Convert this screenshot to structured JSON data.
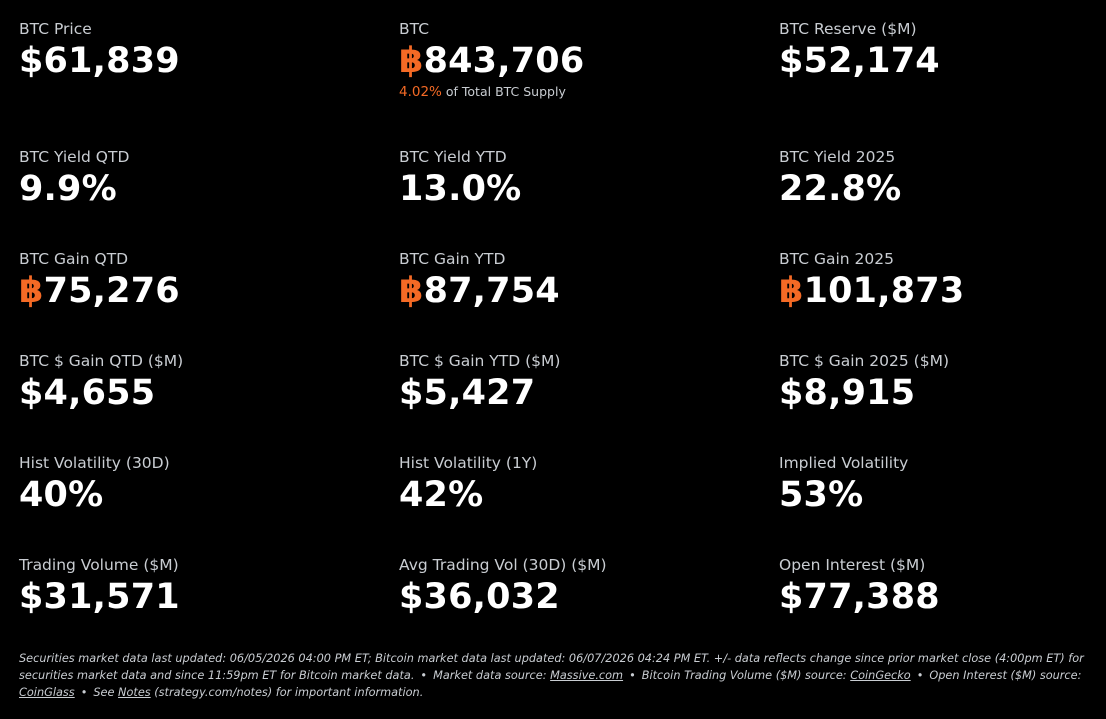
{
  "colors": {
    "background": "#000000",
    "text": "#ffffff",
    "label": "#c9cdd2",
    "btc_accent": "#f46a25"
  },
  "btc_symbol": "฿",
  "metrics": [
    {
      "label": "BTC Price",
      "value": "$61,839"
    },
    {
      "label": "BTC",
      "value": "843,706",
      "sub_pct": "4.02%",
      "sub_text": "of Total BTC Supply"
    },
    {
      "label": "BTC Reserve ($M)",
      "value": "$52,174"
    },
    {
      "label": "BTC Yield QTD",
      "value": "9.9%"
    },
    {
      "label": "BTC Yield YTD",
      "value": "13.0%"
    },
    {
      "label": "BTC Yield 2025",
      "value": "22.8%"
    },
    {
      "label": "BTC Gain QTD",
      "value": "75,276"
    },
    {
      "label": "BTC Gain YTD",
      "value": "87,754"
    },
    {
      "label": "BTC Gain 2025",
      "value": "101,873"
    },
    {
      "label": "BTC $ Gain QTD ($M)",
      "value": "$4,655"
    },
    {
      "label": "BTC $ Gain YTD ($M)",
      "value": "$5,427"
    },
    {
      "label": "BTC $ Gain 2025 ($M)",
      "value": "$8,915"
    },
    {
      "label": "Hist Volatility (30D)",
      "value": "40%"
    },
    {
      "label": "Hist Volatility (1Y)",
      "value": "42%"
    },
    {
      "label": "Implied Volatility",
      "value": "53%"
    },
    {
      "label": "Trading Volume ($M)",
      "value": "$31,571"
    },
    {
      "label": "Avg Trading Vol (30D) ($M)",
      "value": "$36,032"
    },
    {
      "label": "Open Interest ($M)",
      "value": "$77,388"
    }
  ],
  "footnote": {
    "updated": "Securities market data last updated: 06/05/2026 04:00 PM ET; Bitcoin market data last updated: 06/07/2026 04:24 PM ET. +/- data reflects change since prior market close (4:00pm ET) for securities market data and since 11:59pm ET for Bitcoin market data.",
    "bullet": "•",
    "market_source_prefix": "Market data source:",
    "market_source_link": "Massive.com",
    "volume_source_prefix": "Bitcoin Trading Volume ($M) source:",
    "volume_source_link": "CoinGecko",
    "oi_source_prefix": "Open Interest ($M) source:",
    "oi_source_link": "CoinGlass",
    "notes_prefix": "See",
    "notes_link": "Notes",
    "notes_suffix": "(strategy.com/notes) for important information."
  }
}
